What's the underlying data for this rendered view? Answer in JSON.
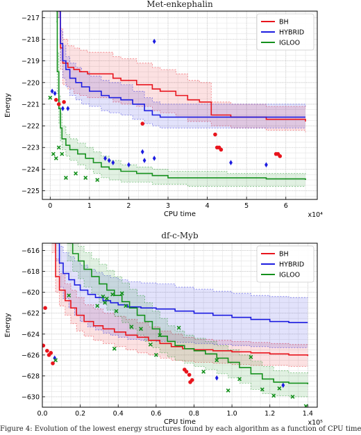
{
  "caption": "Figure 4: Evolution of the lowest energy structures found by each algorithm as a function of CPU time",
  "chart_data": [
    {
      "type": "line",
      "title": "Met-enkephalin",
      "xlabel": "CPU time",
      "ylabel": "Energy",
      "x_exponent": "x10⁴",
      "xlim": [
        -2000,
        68000
      ],
      "ylim": [
        -225.4,
        -216.7
      ],
      "xticks": [
        0,
        10000,
        20000,
        30000,
        40000,
        50000,
        60000
      ],
      "xtick_labels": [
        "0",
        "1",
        "2",
        "3",
        "4",
        "5",
        "6"
      ],
      "yticks": [
        -225,
        -224,
        -223,
        -222,
        -221,
        -220,
        -219,
        -218,
        -217
      ],
      "ytick_labels": [
        "−225",
        "−224",
        "−223",
        "−222",
        "−221",
        "−220",
        "−219",
        "−218",
        "−217"
      ],
      "grid": true,
      "legend_position": "top-right",
      "series": [
        {
          "name": "BH",
          "color": "#e8141c",
          "x": [
            2000,
            2600,
            3200,
            4500,
            6000,
            7500,
            9500,
            12000,
            16000,
            18000,
            22000,
            26000,
            28000,
            32000,
            35000,
            38000,
            41000,
            46000,
            55000,
            65000
          ],
          "y": [
            -216.7,
            -218.4,
            -219.1,
            -219.3,
            -219.4,
            -219.5,
            -219.6,
            -219.6,
            -219.8,
            -219.9,
            -220.1,
            -220.3,
            -220.4,
            -220.6,
            -220.8,
            -220.9,
            -221.5,
            -221.6,
            -221.7,
            -221.8
          ],
          "upper": [
            -216.7,
            -217.5,
            -218.0,
            -218.3,
            -218.4,
            -218.5,
            -218.6,
            -218.6,
            -218.8,
            -218.9,
            -219.1,
            -219.3,
            -219.4,
            -219.6,
            -219.9,
            -220.0,
            -220.9,
            -221.0,
            -221.1,
            -221.2
          ],
          "lower": [
            -217.0,
            -219.4,
            -220.1,
            -220.3,
            -220.5,
            -220.6,
            -220.7,
            -220.7,
            -220.9,
            -221.0,
            -221.1,
            -221.3,
            -221.4,
            -221.6,
            -221.8,
            -221.8,
            -222.0,
            -222.1,
            -222.2,
            -222.3
          ]
        },
        {
          "name": "HYBRID",
          "color": "#1c1ce0",
          "x": [
            2000,
            2600,
            3200,
            4000,
            5000,
            6500,
            8000,
            10000,
            13000,
            15000,
            18000,
            21000,
            24000,
            26000,
            28000,
            32000,
            36000,
            65000
          ],
          "y": [
            -216.7,
            -218.2,
            -219.0,
            -219.4,
            -219.8,
            -220.0,
            -220.2,
            -220.4,
            -220.6,
            -220.7,
            -220.8,
            -221.0,
            -221.3,
            -221.5,
            -221.6,
            -221.6,
            -221.6,
            -221.6
          ],
          "upper": [
            -216.7,
            -217.6,
            -218.3,
            -218.8,
            -219.1,
            -219.3,
            -219.5,
            -219.7,
            -219.9,
            -220.0,
            -220.1,
            -220.4,
            -220.7,
            -220.9,
            -221.0,
            -221.0,
            -221.0,
            -221.1
          ],
          "lower": [
            -217.0,
            -219.0,
            -219.8,
            -220.2,
            -220.6,
            -220.8,
            -221.0,
            -221.1,
            -221.3,
            -221.4,
            -221.5,
            -221.7,
            -221.9,
            -222.0,
            -222.1,
            -222.1,
            -222.1,
            -222.1
          ]
        },
        {
          "name": "IGLOO",
          "color": "#14901c",
          "x": [
            1500,
            1800,
            2200,
            2600,
            3000,
            4000,
            5000,
            7000,
            9000,
            11000,
            13000,
            15000,
            18000,
            22000,
            26000,
            30000,
            35000,
            45000,
            55000,
            65000
          ],
          "y": [
            -216.7,
            -219.5,
            -221.2,
            -222.1,
            -222.6,
            -222.9,
            -223.1,
            -223.3,
            -223.5,
            -223.7,
            -223.9,
            -224.0,
            -224.1,
            -224.2,
            -224.3,
            -224.4,
            -224.4,
            -224.4,
            -224.45,
            -224.5
          ],
          "upper": [
            -216.7,
            -218.6,
            -220.6,
            -221.4,
            -222.0,
            -222.4,
            -222.6,
            -222.8,
            -223.0,
            -223.2,
            -223.4,
            -223.6,
            -223.8,
            -223.9,
            -224.0,
            -224.1,
            -224.1,
            -224.2,
            -224.2,
            -224.3
          ],
          "lower": [
            -217.2,
            -220.5,
            -221.9,
            -222.7,
            -223.1,
            -223.4,
            -223.6,
            -223.8,
            -224.0,
            -224.2,
            -224.4,
            -224.5,
            -224.6,
            -224.6,
            -224.7,
            -224.7,
            -224.8,
            -224.8,
            -224.8,
            -224.8
          ]
        }
      ],
      "scatter": [
        {
          "name": "BH",
          "color": "#e8141c",
          "marker": "circle",
          "points": [
            [
              1500,
              -220.8
            ],
            [
              2200,
              -221.0
            ],
            [
              3500,
              -220.9
            ],
            [
              23500,
              -221.9
            ],
            [
              42000,
              -222.4
            ],
            [
              42500,
              -223.0
            ],
            [
              43000,
              -223.0
            ],
            [
              43500,
              -223.1
            ],
            [
              57500,
              -223.3
            ],
            [
              58000,
              -223.3
            ],
            [
              58500,
              -223.4
            ]
          ]
        },
        {
          "name": "HYBRID",
          "color": "#1c1ce0",
          "marker": "diamond",
          "points": [
            [
              500,
              -220.4
            ],
            [
              1200,
              -220.5
            ],
            [
              3200,
              -221.2
            ],
            [
              4500,
              -221.2
            ],
            [
              14000,
              -223.5
            ],
            [
              15000,
              -223.6
            ],
            [
              16000,
              -223.7
            ],
            [
              20000,
              -223.8
            ],
            [
              23500,
              -223.2
            ],
            [
              24000,
              -223.6
            ],
            [
              26500,
              -223.5
            ],
            [
              26500,
              -218.1
            ],
            [
              46000,
              -223.7
            ],
            [
              55000,
              -223.8
            ]
          ]
        },
        {
          "name": "IGLOO",
          "color": "#14901c",
          "marker": "x",
          "points": [
            [
              0,
              -220.7
            ],
            [
              800,
              -223.3
            ],
            [
              1500,
              -223.5
            ],
            [
              2200,
              -223.0
            ],
            [
              3000,
              -223.3
            ],
            [
              4000,
              -224.4
            ],
            [
              6500,
              -224.2
            ],
            [
              9000,
              -224.4
            ],
            [
              12000,
              -224.5
            ]
          ]
        }
      ]
    },
    {
      "type": "line",
      "title": "df-c-Myb",
      "xlabel": "CPU time",
      "ylabel": "Energy",
      "x_exponent": "x10⁵",
      "xlim": [
        0,
        145000
      ],
      "ylim": [
        -631,
        -615.3
      ],
      "xticks": [
        0,
        20000,
        40000,
        60000,
        80000,
        100000,
        120000,
        140000
      ],
      "xtick_labels": [
        "0.0",
        "0.2",
        "0.4",
        "0.6",
        "0.8",
        "1.0",
        "1.2",
        "1.4"
      ],
      "yticks": [
        -630,
        -628,
        -626,
        -624,
        -622,
        -620,
        -618,
        -616
      ],
      "ytick_labels": [
        "−630",
        "−628",
        "−626",
        "−624",
        "−622",
        "−620",
        "−618",
        "−616"
      ],
      "grid": true,
      "legend_position": "top-right",
      "series": [
        {
          "name": "BH",
          "color": "#e8141c",
          "x": [
            5000,
            7000,
            9000,
            12000,
            15000,
            18000,
            22000,
            27000,
            32000,
            38000,
            44000,
            50000,
            56000,
            62000,
            68000,
            74000,
            80000,
            90000,
            100000,
            110000,
            120000,
            130000,
            140000
          ],
          "y": [
            -615.3,
            -618.5,
            -619.8,
            -620.8,
            -621.5,
            -622.2,
            -622.8,
            -623.2,
            -623.5,
            -623.8,
            -624.1,
            -624.3,
            -624.6,
            -624.9,
            -625.2,
            -625.4,
            -625.5,
            -625.6,
            -625.7,
            -625.8,
            -625.9,
            -626.0,
            -626.1
          ],
          "upper": [
            -615.3,
            -616.8,
            -618.2,
            -619.2,
            -619.8,
            -620.5,
            -621.2,
            -621.6,
            -622.0,
            -622.3,
            -622.6,
            -622.9,
            -623.3,
            -623.7,
            -624.0,
            -624.3,
            -624.5,
            -624.6,
            -624.7,
            -624.8,
            -624.9,
            -625.0,
            -625.1
          ],
          "lower": [
            -616.2,
            -620.0,
            -621.3,
            -622.2,
            -623.0,
            -623.7,
            -624.2,
            -624.6,
            -624.9,
            -625.2,
            -625.5,
            -625.8,
            -626.0,
            -626.3,
            -626.5,
            -626.6,
            -626.7,
            -626.8,
            -626.9,
            -627.0,
            -627.0,
            -627.1,
            -627.1
          ]
        },
        {
          "name": "HYBRID",
          "color": "#1c1ce0",
          "x": [
            7000,
            9000,
            11000,
            14000,
            17000,
            20000,
            24000,
            28000,
            32000,
            36000,
            40000,
            45000,
            52000,
            60000,
            70000,
            80000,
            90000,
            100000,
            110000,
            120000,
            130000,
            140000
          ],
          "y": [
            -615.3,
            -617.2,
            -618.2,
            -618.8,
            -619.3,
            -619.8,
            -620.2,
            -620.5,
            -620.8,
            -621.0,
            -621.2,
            -621.4,
            -621.5,
            -621.6,
            -621.8,
            -622.0,
            -622.2,
            -622.4,
            -622.6,
            -622.8,
            -622.9,
            -622.9
          ],
          "upper": [
            -615.3,
            -615.6,
            -616.2,
            -616.6,
            -617.0,
            -617.4,
            -617.8,
            -618.1,
            -618.4,
            -618.6,
            -618.8,
            -619.0,
            -619.1,
            -619.2,
            -619.5,
            -619.7,
            -619.9,
            -620.1,
            -620.3,
            -620.4,
            -620.5,
            -620.5
          ],
          "lower": [
            -617.0,
            -619.5,
            -620.6,
            -621.5,
            -622.2,
            -622.8,
            -623.3,
            -623.6,
            -623.9,
            -624.1,
            -624.3,
            -624.5,
            -624.6,
            -624.7,
            -624.8,
            -624.9,
            -625.0,
            -625.1,
            -625.2,
            -625.3,
            -625.3,
            -625.3
          ]
        },
        {
          "name": "IGLOO",
          "color": "#14901c",
          "x": [
            13000,
            16000,
            19000,
            22000,
            26000,
            30000,
            34000,
            38000,
            42000,
            46000,
            50000,
            54000,
            58000,
            62000,
            66000,
            70000,
            75000,
            80000,
            86000,
            92000,
            98000,
            104000,
            110000,
            116000,
            122000,
            130000,
            140000
          ],
          "y": [
            -615.3,
            -616.3,
            -617.0,
            -617.8,
            -618.5,
            -619.2,
            -619.8,
            -620.3,
            -620.9,
            -621.5,
            -622.2,
            -622.8,
            -623.5,
            -624.2,
            -624.7,
            -625.1,
            -625.4,
            -625.6,
            -625.9,
            -626.3,
            -626.7,
            -627.2,
            -627.8,
            -628.3,
            -628.6,
            -628.7,
            -628.8
          ],
          "upper": [
            -615.3,
            -615.3,
            -615.6,
            -616.2,
            -616.8,
            -617.3,
            -617.9,
            -618.5,
            -619.1,
            -619.7,
            -620.3,
            -621.0,
            -621.8,
            -622.5,
            -623.2,
            -623.7,
            -624.1,
            -624.4,
            -624.7,
            -625.1,
            -625.5,
            -626.0,
            -626.6,
            -627.1,
            -627.5,
            -627.7,
            -627.8
          ],
          "lower": [
            -617.0,
            -618.0,
            -618.7,
            -619.5,
            -620.2,
            -621.0,
            -621.7,
            -622.3,
            -622.9,
            -623.5,
            -624.1,
            -624.7,
            -625.3,
            -625.8,
            -626.2,
            -626.5,
            -626.8,
            -627.1,
            -627.4,
            -627.8,
            -628.2,
            -628.7,
            -629.3,
            -629.7,
            -629.9,
            -630.0,
            -630.1
          ]
        }
      ],
      "scatter": [
        {
          "name": "BH",
          "color": "#e8141c",
          "marker": "circle",
          "points": [
            [
              500,
              -625.1
            ],
            [
              1500,
              -621.5
            ],
            [
              2500,
              -625.6
            ],
            [
              3500,
              -626.0
            ],
            [
              4500,
              -625.8
            ],
            [
              5500,
              -626.8
            ],
            [
              75000,
              -627.4
            ],
            [
              76000,
              -627.6
            ],
            [
              77500,
              -627.9
            ],
            [
              78000,
              -628.6
            ],
            [
              79000,
              -628.4
            ]
          ]
        },
        {
          "name": "HYBRID",
          "color": "#1c1ce0",
          "marker": "diamond",
          "points": [
            [
              6500,
              -626.3
            ],
            [
              92000,
              -628.2
            ],
            [
              127000,
              -628.9
            ]
          ]
        },
        {
          "name": "IGLOO",
          "color": "#14901c",
          "marker": "x",
          "points": [
            [
              7000,
              -626.5
            ],
            [
              14000,
              -620.3
            ],
            [
              29000,
              -621.3
            ],
            [
              32000,
              -620.4
            ],
            [
              33000,
              -621.0
            ],
            [
              34000,
              -620.6
            ],
            [
              37000,
              -620.2
            ],
            [
              38000,
              -625.4
            ],
            [
              39000,
              -621.8
            ],
            [
              42000,
              -620.1
            ],
            [
              44000,
              -621.3
            ],
            [
              47000,
              -623.3
            ],
            [
              52000,
              -623.5
            ],
            [
              57000,
              -625.0
            ],
            [
              60000,
              -626.0
            ],
            [
              62000,
              -624.1
            ],
            [
              72000,
              -623.4
            ],
            [
              85000,
              -627.6
            ],
            [
              92000,
              -626.5
            ],
            [
              98000,
              -629.4
            ],
            [
              104000,
              -628.3
            ],
            [
              110000,
              -626.2
            ],
            [
              116000,
              -629.3
            ],
            [
              122000,
              -629.9
            ],
            [
              125000,
              -629.2
            ],
            [
              132000,
              -630.0
            ],
            [
              139000,
              -630.9
            ]
          ]
        }
      ]
    }
  ]
}
